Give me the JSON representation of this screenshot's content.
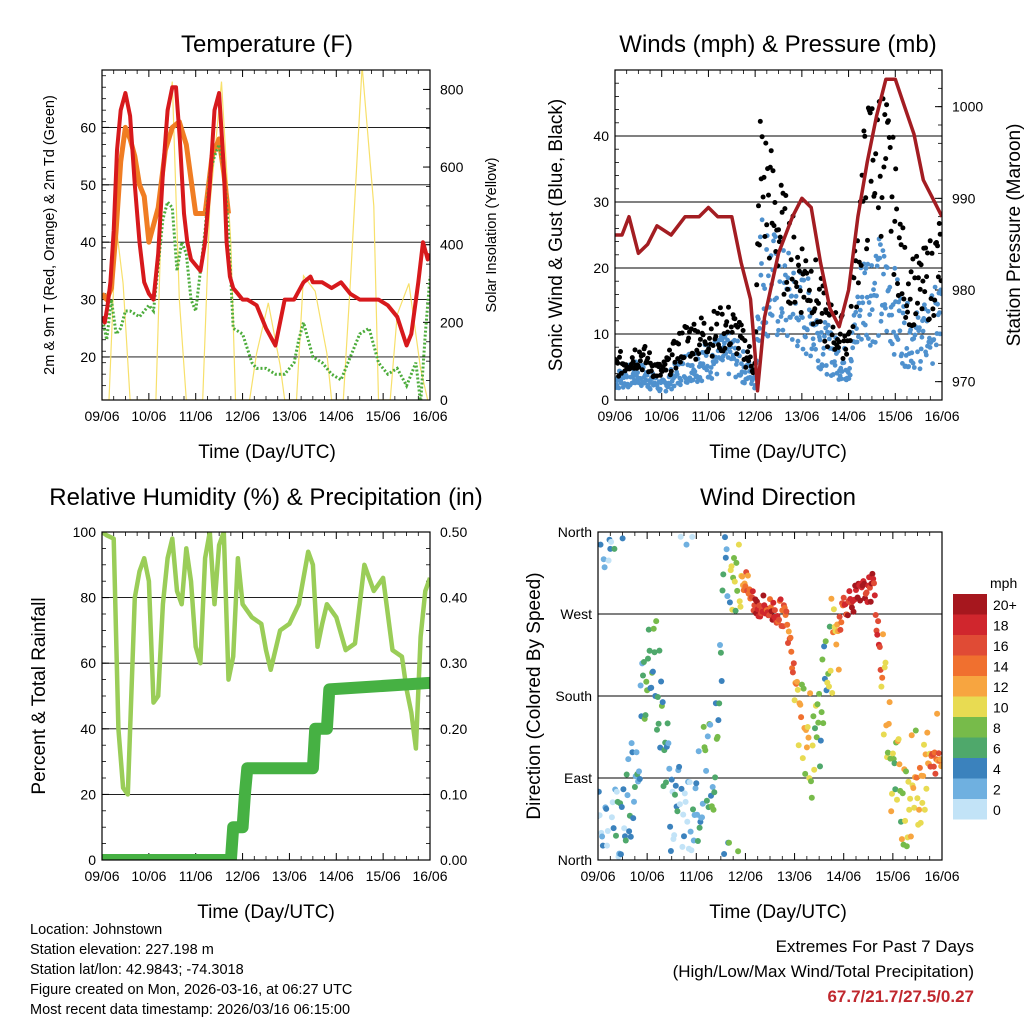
{
  "panels": {
    "temperature": {
      "title": "Temperature (F)",
      "xlabel": "Time (Day/UTC)",
      "ylabel_left": "2m & 9m T (Red, Orange) & 2m Td (Green)",
      "ylabel_right": "Solar Insolation (Yellow)"
    },
    "winds": {
      "title": "Winds (mph) & Pressure (mb)",
      "xlabel": "Time (Day/UTC)",
      "ylabel_left": "Sonic Wind & Gust (Blue, Black)",
      "ylabel_right": "Station Pressure (Maroon)"
    },
    "humidity": {
      "title": "Relative Humidity (%) & Precipitation (in)",
      "xlabel": "Time (Day/UTC)",
      "ylabel_left": "Percent & Total Rainfall"
    },
    "direction": {
      "title": "Wind Direction",
      "xlabel": "Time (Day/UTC)",
      "ylabel_left": "Direction (Colored By Speed)",
      "legend_title": "mph"
    }
  },
  "chart_data": [
    {
      "id": "temperature",
      "type": "line",
      "categories": [
        "09/06",
        "10/06",
        "11/06",
        "12/06",
        "13/06",
        "14/06",
        "15/06",
        "16/06"
      ],
      "ylim": [
        12.5,
        70
      ],
      "y2lim": [
        0,
        850
      ],
      "yticks": [
        20,
        30,
        40,
        50,
        60
      ],
      "y2ticks": [
        0,
        200,
        400,
        600,
        800
      ],
      "colors": {
        "t2m": "#d7191c",
        "t9m": "#f07d23",
        "td": "#4cac3b",
        "solar": "#f7e06b"
      },
      "series": [
        {
          "name": "2m T",
          "color": "#d7191c",
          "x": [
            0,
            0.06,
            0.12,
            0.18,
            0.25,
            0.32,
            0.4,
            0.5,
            0.6,
            0.7,
            0.8,
            0.9,
            1,
            1.1,
            1.2,
            1.3,
            1.4,
            1.5,
            1.58,
            1.66,
            1.75,
            1.82,
            1.9,
            2,
            2.1,
            2.2,
            2.3,
            2.4,
            2.5,
            2.6,
            2.66,
            2.73,
            2.8,
            2.9,
            3,
            3.1,
            3.3,
            3.5,
            3.7,
            3.9,
            4.1,
            4.3,
            4.45,
            4.5,
            4.7,
            4.9,
            5.1,
            5.3,
            5.5,
            5.7,
            5.9,
            6.1,
            6.3,
            6.5,
            6.6,
            6.75,
            6.85,
            6.95,
            7
          ],
          "values": [
            27,
            26,
            29,
            33,
            42,
            56,
            63,
            66,
            62,
            50,
            40,
            33,
            31,
            30,
            38,
            52,
            63,
            67,
            67,
            58,
            45,
            40,
            37,
            36,
            35,
            40,
            50,
            63,
            66,
            53,
            40,
            34,
            32,
            31,
            30,
            30,
            29,
            25,
            22,
            30,
            30,
            33,
            34,
            33,
            33,
            32,
            33,
            31,
            30,
            30,
            30,
            29,
            27,
            22,
            24,
            33,
            40,
            37,
            38
          ]
        },
        {
          "name": "9m T",
          "color": "#f07d23",
          "x": [
            0,
            0.1,
            0.2,
            0.3,
            0.4,
            0.5,
            0.6,
            0.7,
            0.8,
            0.9,
            1,
            1.2,
            1.35,
            1.5,
            1.65,
            1.8,
            2,
            2.2,
            2.35,
            2.5,
            2.6,
            2.7
          ],
          "values": [
            31,
            30,
            32,
            42,
            54,
            60,
            58,
            55,
            50,
            48,
            40,
            46,
            56,
            60,
            61,
            57,
            45,
            45,
            55,
            58,
            52,
            45
          ]
        },
        {
          "name": "2m Td",
          "color": "#4cac3b",
          "x": [
            0,
            0.1,
            0.2,
            0.3,
            0.4,
            0.5,
            0.6,
            0.8,
            1,
            1.1,
            1.2,
            1.3,
            1.4,
            1.5,
            1.6,
            1.7,
            1.8,
            1.9,
            2,
            2.1,
            2.2,
            2.3,
            2.4,
            2.5,
            2.6,
            2.7,
            2.8,
            3,
            3.2,
            3.3,
            3.5,
            3.7,
            3.9,
            4.1,
            4.2,
            4.3,
            4.5,
            4.7,
            4.9,
            5.1,
            5.3,
            5.5,
            5.7,
            5.9,
            6.1,
            6.3,
            6.5,
            6.7,
            6.8,
            6.9,
            7
          ],
          "values": [
            27,
            23,
            30,
            24,
            25,
            28,
            28,
            27,
            29,
            28,
            36,
            44,
            47,
            46,
            35,
            40,
            38,
            30,
            28,
            35,
            42,
            52,
            55,
            57,
            53,
            42,
            25,
            24,
            19,
            18,
            18,
            17,
            17,
            19,
            23,
            26,
            20,
            19,
            17,
            16,
            20,
            24,
            25,
            19,
            17,
            18,
            15,
            19,
            12,
            24,
            34
          ]
        },
        {
          "name": "Solar",
          "color": "#f7e06b",
          "axis": "right",
          "x": [
            0,
            0.15,
            0.3,
            0.45,
            0.6,
            1.15,
            1.3,
            1.5,
            1.65,
            1.8,
            2.15,
            2.3,
            2.55,
            2.75,
            2.85,
            3.15,
            3.3,
            3.55,
            3.8,
            3.9,
            4.15,
            4.3,
            4.55,
            4.8,
            4.9,
            5.15,
            5.3,
            5.55,
            5.8,
            5.9,
            6.15,
            6.3,
            6.55,
            6.8,
            6.95
          ],
          "values": [
            0,
            0,
            450,
            300,
            0,
            0,
            600,
            820,
            260,
            0,
            0,
            500,
            820,
            400,
            0,
            0,
            120,
            250,
            90,
            0,
            0,
            320,
            280,
            120,
            0,
            0,
            300,
            860,
            500,
            0,
            0,
            220,
            300,
            80,
            0
          ]
        }
      ]
    },
    {
      "id": "winds",
      "type": "scatter",
      "categories": [
        "09/06",
        "10/06",
        "11/06",
        "12/06",
        "13/06",
        "14/06",
        "15/06",
        "16/06"
      ],
      "ylim": [
        0,
        50
      ],
      "y2lim": [
        968,
        1004
      ],
      "yticks": [
        0,
        10,
        20,
        30,
        40
      ],
      "y2ticks": [
        970,
        980,
        990,
        1000
      ],
      "colors": {
        "wind": "#4f91ce",
        "gust": "#000000",
        "pressure": "#a31d22"
      },
      "series": [
        {
          "name": "Sonic Wind",
          "color": "#4f91ce",
          "x": [
            0,
            0.5,
            1,
            1.5,
            2,
            2.5,
            3,
            3.1,
            3.3,
            3.6,
            3.9,
            4.2,
            4.5,
            4.8,
            5,
            5.3,
            5.6,
            5.9,
            6.2,
            6.5,
            6.8,
            7
          ],
          "values": [
            3,
            4,
            2,
            5,
            6,
            7,
            3,
            20,
            18,
            16,
            14,
            12,
            8,
            6,
            5,
            16,
            17,
            15,
            10,
            9,
            11,
            13
          ]
        },
        {
          "name": "Gust",
          "color": "#000000",
          "x": [
            0,
            0.5,
            1,
            1.5,
            2,
            2.5,
            3,
            3.1,
            3.3,
            3.6,
            3.9,
            4.2,
            4.5,
            4.8,
            5,
            5.3,
            5.6,
            5.9,
            6.2,
            6.5,
            6.8,
            7
          ],
          "values": [
            5,
            7,
            4,
            9,
            10,
            11,
            5,
            34,
            30,
            24,
            20,
            18,
            12,
            10,
            9,
            30,
            40,
            32,
            18,
            16,
            19,
            22
          ]
        },
        {
          "name": "Station Pressure",
          "color": "#a31d22",
          "axis": "right",
          "x": [
            0,
            0.15,
            0.3,
            0.5,
            0.7,
            0.9,
            1.2,
            1.5,
            1.8,
            2,
            2.2,
            2.5,
            2.7,
            2.9,
            3,
            3.05,
            3.2,
            3.5,
            3.8,
            4,
            4.2,
            4.4,
            4.6,
            4.8,
            5,
            5.2,
            5.4,
            5.6,
            5.8,
            6,
            6.2,
            6.4,
            6.6,
            6.8,
            7
          ],
          "values": [
            986,
            986,
            988,
            984,
            985,
            987,
            986,
            988,
            988,
            989,
            988,
            988,
            983,
            979,
            973,
            969,
            977,
            984,
            988,
            990,
            989,
            983,
            978,
            976,
            980,
            988,
            994,
            999,
            1003,
            1003,
            1000,
            997,
            992,
            990,
            988
          ]
        }
      ]
    },
    {
      "id": "humidity",
      "type": "line",
      "categories": [
        "09/06",
        "10/06",
        "11/06",
        "12/06",
        "13/06",
        "14/06",
        "15/06",
        "16/06"
      ],
      "ylim": [
        0,
        100
      ],
      "y2lim": [
        0,
        0.5
      ],
      "yticks": [
        0,
        20,
        40,
        60,
        80,
        100
      ],
      "y2ticks": [
        "0.00",
        "0.10",
        "0.20",
        "0.30",
        "0.40",
        "0.50"
      ],
      "colors": {
        "rh": "#9acd58",
        "precip": "#46b143"
      },
      "series": [
        {
          "name": "Relative Humidity",
          "color": "#9acd58",
          "x": [
            0,
            0.1,
            0.25,
            0.35,
            0.45,
            0.55,
            0.7,
            0.8,
            0.9,
            1,
            1.1,
            1.2,
            1.3,
            1.4,
            1.5,
            1.6,
            1.7,
            1.8,
            1.9,
            2,
            2.1,
            2.2,
            2.3,
            2.4,
            2.5,
            2.6,
            2.7,
            2.8,
            2.9,
            3,
            3.2,
            3.4,
            3.5,
            3.6,
            3.8,
            4,
            4.2,
            4.4,
            4.5,
            4.6,
            4.7,
            4.8,
            5,
            5.2,
            5.4,
            5.6,
            5.8,
            6,
            6.2,
            6.4,
            6.5,
            6.6,
            6.7,
            6.8,
            6.9,
            7
          ],
          "values": [
            100,
            99,
            98,
            40,
            22,
            20,
            80,
            88,
            92,
            85,
            48,
            50,
            78,
            92,
            98,
            82,
            78,
            95,
            85,
            65,
            60,
            92,
            100,
            78,
            96,
            100,
            55,
            62,
            92,
            78,
            74,
            72,
            64,
            58,
            70,
            72,
            78,
            94,
            90,
            65,
            72,
            78,
            74,
            64,
            66,
            90,
            82,
            86,
            64,
            62,
            52,
            45,
            34,
            68,
            82,
            86
          ]
        },
        {
          "name": "Total Precipitation",
          "color": "#46b143",
          "axis": "right",
          "x": [
            0,
            2.75,
            2.8,
            3,
            3.05,
            3.1,
            4.5,
            4.55,
            4.8,
            4.85,
            7
          ],
          "values": [
            0,
            0,
            0.05,
            0.05,
            0.1,
            0.14,
            0.14,
            0.2,
            0.2,
            0.26,
            0.27
          ]
        }
      ]
    },
    {
      "id": "direction",
      "type": "scatter",
      "categories": [
        "09/06",
        "10/06",
        "11/06",
        "12/06",
        "13/06",
        "14/06",
        "15/06",
        "16/06"
      ],
      "ylim": [
        "North",
        "East",
        "South",
        "West",
        "North"
      ],
      "yticks": [
        "North",
        "East",
        "South",
        "West",
        "North"
      ],
      "legend": {
        "labels": [
          "20+",
          "18",
          "16",
          "14",
          "12",
          "10",
          "8",
          "6",
          "4",
          "2",
          "0"
        ],
        "colors": [
          "#a6171e",
          "#d0262d",
          "#e04b35",
          "#f0702f",
          "#f7a540",
          "#e8db52",
          "#77bb4a",
          "#4fa86b",
          "#3b82bd",
          "#6fb0e0",
          "#c2e3f7"
        ]
      },
      "series": [
        {
          "name": "Direction",
          "x": [
            0.2,
            0.5,
            0.8,
            1.1,
            1.5,
            1.8,
            2.2,
            2.4,
            2.6,
            3.2,
            3.5,
            3.8,
            4.2,
            4.4,
            4.6,
            5,
            5.3,
            5.6,
            6,
            6.3,
            6.6,
            6.9
          ],
          "values": [
            20,
            40,
            120,
            250,
            60,
            30,
            100,
            120,
            350,
            280,
            275,
            270,
            150,
            110,
            200,
            280,
            290,
            300,
            90,
            70,
            100,
            110
          ],
          "speeds": [
            2,
            3,
            4,
            6,
            3,
            2,
            5,
            6,
            4,
            18,
            17,
            16,
            10,
            8,
            6,
            16,
            20,
            18,
            8,
            10,
            12,
            14
          ]
        }
      ]
    }
  ],
  "footer": {
    "location": "Location: Johnstown",
    "elevation": "Station elevation: 227.198 m",
    "latlon": "Station lat/lon: 42.9843; -74.3018",
    "created": "Figure created on Mon, 2026-03-16, at 06:27 UTC",
    "recent": "Most recent data timestamp: 2026/03/16 06:15:00"
  },
  "extremes": {
    "title": "Extremes For Past 7 Days",
    "subtitle": "(High/Low/Max Wind/Total Precipitation)",
    "values": "67.7/21.7/27.5/0.27",
    "color": "#c0282e"
  }
}
